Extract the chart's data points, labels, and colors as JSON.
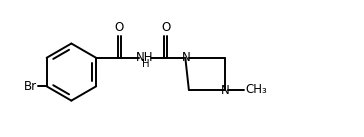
{
  "bg_color": "#ffffff",
  "line_color": "#000000",
  "line_width": 1.4,
  "font_size": 8.5,
  "fig_width": 3.64,
  "fig_height": 1.37,
  "dpi": 100,
  "xlim": [
    0,
    100
  ],
  "ylim": [
    0,
    38
  ]
}
